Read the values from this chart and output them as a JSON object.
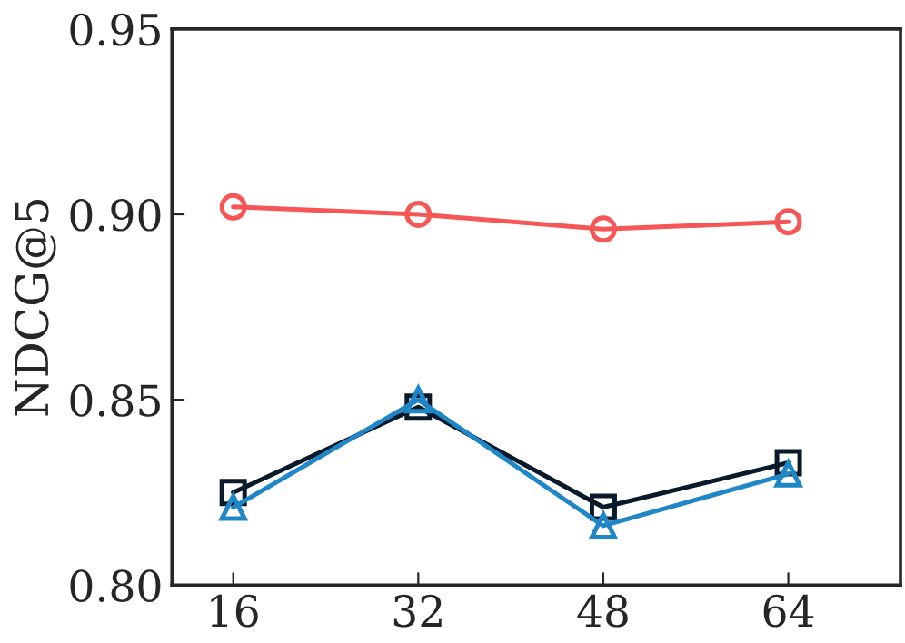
{
  "chart_data": {
    "type": "line",
    "ylabel": "NDCG@5",
    "x": [
      16,
      32,
      48,
      64
    ],
    "series": [
      {
        "color": "#f65656",
        "values": [
          0.902,
          0.9,
          0.896,
          0.898
        ],
        "marker": "circle"
      },
      {
        "color": "#0b1a2b",
        "values": [
          0.825,
          0.848,
          0.821,
          0.833
        ],
        "marker": "square"
      },
      {
        "color": "#1f86c8",
        "values": [
          0.821,
          0.85,
          0.816,
          0.83
        ],
        "marker": "triangle"
      }
    ],
    "xlim": [
      10.7,
      73.7
    ],
    "xticks": [
      16,
      32,
      48,
      64
    ],
    "ylim": [
      0.8,
      0.95
    ],
    "yticks": [
      {
        "value": 0.8,
        "label": "0.80"
      },
      {
        "value": 0.85,
        "label": "0.85"
      },
      {
        "value": 0.9,
        "label": "0.90"
      },
      {
        "value": 0.95,
        "label": "0.95"
      }
    ],
    "grid": false,
    "legend": false,
    "line_style": "solid"
  }
}
